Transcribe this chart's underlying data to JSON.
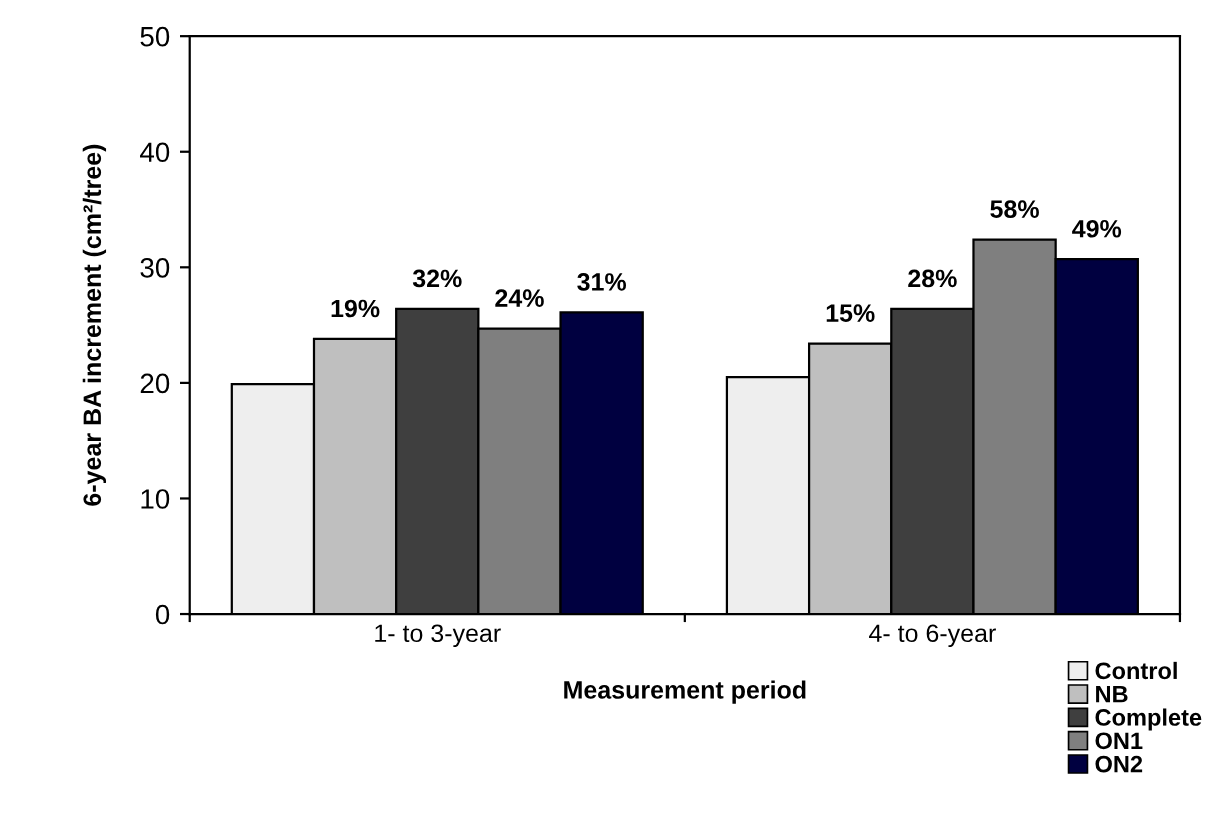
{
  "chart_data": {
    "type": "bar",
    "xlabel": "Measurement period",
    "ylabel": "6-year BA increment (cm²/tree)",
    "categories": [
      "1- to 3-year",
      "4- to 6-year"
    ],
    "series": [
      {
        "name": "Control",
        "color": "#eeeeee",
        "values": [
          19.9,
          20.5
        ]
      },
      {
        "name": "NB",
        "color": "#bfbfbf",
        "values": [
          23.8,
          23.4
        ]
      },
      {
        "name": "Complete",
        "color": "#3f3f3f",
        "values": [
          26.4,
          26.4
        ]
      },
      {
        "name": "ON1",
        "color": "#7f7f7f",
        "values": [
          24.7,
          32.4
        ]
      },
      {
        "name": "ON2",
        "color": "#000040",
        "values": [
          26.1,
          30.7
        ]
      }
    ],
    "annotations": [
      "19%",
      "32%",
      "24%",
      "31%",
      "15%",
      "28%",
      "58%",
      "49%"
    ],
    "ylim": [
      0,
      50
    ],
    "yticks": [
      0,
      10,
      20,
      30,
      40,
      50
    ],
    "grid": false,
    "legend": "bottom right"
  }
}
